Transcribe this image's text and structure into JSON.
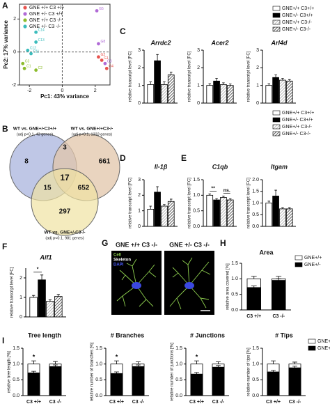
{
  "panel_labels": [
    "A",
    "B",
    "C",
    "D",
    "E",
    "F",
    "G",
    "H",
    "I"
  ],
  "venn": {
    "sets": [
      {
        "title": "WT vs. GNE+/-C3+/+",
        "subtitle": "(adj p<0.1, 43 genes)"
      },
      {
        "title": "WT vs. GNE+/+C3-/-",
        "subtitle": "(adj p<0.1, 1333 genes)"
      },
      {
        "title": "WT vs. GNE+/-C3-/-",
        "subtitle": "(adj p<0.1, 981 genes)"
      }
    ],
    "counts": [
      8,
      3,
      661,
      17,
      15,
      652,
      297
    ]
  },
  "micrographs": {
    "titles": [
      "GNE +/+ C3 -/-",
      "GNE +/- C3 -/-"
    ],
    "channels": [
      "Cell",
      "Skeleton",
      "DAPI"
    ]
  },
  "chart_data": [
    {
      "type": "scatter",
      "x_label": "Pc1: 43% variance",
      "y_label": "Pc2: 17% variance",
      "xlim": [
        -2.6,
        2.9
      ],
      "ylim": [
        -2,
        2.9
      ],
      "xticks": [
        -2,
        0,
        2
      ],
      "yticks": [
        -2,
        0,
        2
      ],
      "zero_lines": true,
      "series": [
        {
          "name": "GNE +/+ C3 +/+",
          "color": "#e8534e",
          "x": [
            2.4,
            2.2,
            2.7
          ],
          "y": [
            -0.5,
            -0.3,
            -1.0
          ],
          "point_labels": [
            "G1",
            "G2",
            "G4"
          ]
        },
        {
          "name": "GNE +/- C3 +/+",
          "color": "#b06ad6",
          "x": [
            2.1,
            2.2,
            2.6
          ],
          "y": [
            2.5,
            0.5,
            -0.7
          ],
          "point_labels": [
            "G5",
            "G8",
            "G3"
          ]
        },
        {
          "name": "GNE +/+ C3 -/-",
          "color": "#8cbc2c",
          "x": [
            -2.3,
            -1.6,
            -2.4
          ],
          "y": [
            -1.0,
            -1.1,
            -0.7
          ],
          "point_labels": [
            "C1",
            "C2",
            "C3"
          ]
        },
        {
          "name": "GNE +/- C3 -/-",
          "color": "#3bbcbc",
          "x": [
            -1.6,
            -1.6,
            -2.1,
            -1.9
          ],
          "y": [
            1.2,
            0.6,
            0.1,
            -0.1
          ],
          "point_labels": [
            "C14",
            "C13",
            "C12",
            "C11"
          ]
        }
      ]
    },
    {
      "type": "bar",
      "title": "Arrdc2",
      "y_label": "relative transcript level [FC]",
      "ylim": [
        0,
        3
      ],
      "yticks": [
        0,
        1,
        2,
        3
      ],
      "series": [
        {
          "name": "GNE+/+ C3+/+",
          "color": "#ffffff",
          "pattern": "solid",
          "values": [
            1.05
          ],
          "errors": [
            0.15
          ]
        },
        {
          "name": "GNE+/- C3+/+",
          "color": "#000000",
          "pattern": "solid",
          "values": [
            2.4
          ],
          "errors": [
            0.35
          ]
        },
        {
          "name": "GNE+/+ C3-/-",
          "color": "#9a9a9a",
          "pattern": "hatch",
          "values": [
            1.05
          ],
          "errors": [
            0.15
          ]
        },
        {
          "name": "GNE+/- C3-/-",
          "color": "#333333",
          "pattern": "hatch",
          "values": [
            1.6
          ],
          "errors": [
            0.15
          ]
        }
      ]
    },
    {
      "type": "bar",
      "title": "Acer2",
      "y_label": "relative transcript level [FC]",
      "ylim": [
        0,
        3
      ],
      "yticks": [
        0,
        1,
        2,
        3
      ],
      "series": [
        {
          "name": "GNE+/+ C3+/+",
          "color": "#ffffff",
          "pattern": "solid",
          "values": [
            1.0
          ],
          "errors": [
            0.1
          ]
        },
        {
          "name": "GNE+/- C3+/+",
          "color": "#000000",
          "pattern": "solid",
          "values": [
            1.25
          ],
          "errors": [
            0.15
          ]
        },
        {
          "name": "GNE+/+ C3-/-",
          "color": "#9a9a9a",
          "pattern": "hatch",
          "values": [
            1.05
          ],
          "errors": [
            0.1
          ]
        },
        {
          "name": "GNE+/- C3-/-",
          "color": "#333333",
          "pattern": "hatch",
          "values": [
            1.0
          ],
          "errors": [
            0.08
          ]
        }
      ]
    },
    {
      "type": "bar",
      "title": "Arl4d",
      "y_label": "relative transcript level [FC]",
      "ylim": [
        0,
        3
      ],
      "yticks": [
        0,
        1,
        2,
        3
      ],
      "series": [
        {
          "name": "GNE+/+ C3+/+",
          "color": "#ffffff",
          "pattern": "solid",
          "values": [
            1.0
          ],
          "errors": [
            0.1
          ]
        },
        {
          "name": "GNE+/- C3+/+",
          "color": "#000000",
          "pattern": "solid",
          "values": [
            1.45
          ],
          "errors": [
            0.15
          ]
        },
        {
          "name": "GNE+/+ C3-/-",
          "color": "#9a9a9a",
          "pattern": "hatch",
          "values": [
            1.3
          ],
          "errors": [
            0.1
          ]
        },
        {
          "name": "GNE+/- C3-/-",
          "color": "#333333",
          "pattern": "hatch",
          "values": [
            1.25
          ],
          "errors": [
            0.08
          ]
        }
      ]
    },
    {
      "type": "bar",
      "title": "Il-1β",
      "y_label": "relative transcript level [FC]",
      "ylim": [
        0,
        3
      ],
      "yticks": [
        0,
        1,
        2,
        3
      ],
      "series": [
        {
          "name": "GNE+/+ C3+/+",
          "color": "#ffffff",
          "pattern": "solid",
          "values": [
            1.1
          ],
          "errors": [
            0.2
          ]
        },
        {
          "name": "GNE+/- C3+/+",
          "color": "#000000",
          "pattern": "solid",
          "values": [
            2.2
          ],
          "errors": [
            0.35
          ]
        },
        {
          "name": "GNE+/+ C3-/-",
          "color": "#9a9a9a",
          "pattern": "hatch",
          "values": [
            1.3
          ],
          "errors": [
            0.1
          ]
        },
        {
          "name": "GNE+/- C3-/-",
          "color": "#333333",
          "pattern": "hatch",
          "values": [
            1.6
          ],
          "errors": [
            0.15
          ]
        }
      ]
    },
    {
      "type": "bar",
      "title": "C1qb",
      "y_label": "relative transcript level [FC]",
      "ylim": [
        0,
        1.5
      ],
      "yticks": [
        {
          "value": 0,
          "label": "0.0"
        },
        0.5,
        {
          "value": 1,
          "label": "1.0"
        },
        1.5
      ],
      "annotations": [
        {
          "text": "**",
          "bars": [
            0,
            1
          ]
        },
        {
          "text": "ns.",
          "bars": [
            2,
            3
          ]
        }
      ],
      "series": [
        {
          "name": "GNE+/+ C3+/+",
          "color": "#ffffff",
          "pattern": "solid",
          "values": [
            1.0
          ],
          "errors": [
            0.04
          ]
        },
        {
          "name": "GNE+/- C3+/+",
          "color": "#000000",
          "pattern": "solid",
          "values": [
            0.85
          ],
          "errors": [
            0.04
          ]
        },
        {
          "name": "GNE+/+ C3-/-",
          "color": "#9a9a9a",
          "pattern": "hatch",
          "values": [
            0.93
          ],
          "errors": [
            0.04
          ]
        },
        {
          "name": "GNE+/- C3-/-",
          "color": "#333333",
          "pattern": "hatch",
          "values": [
            0.85
          ],
          "errors": [
            0.04
          ]
        }
      ]
    },
    {
      "type": "bar",
      "title": "Itgam",
      "y_label": "relative transcript level [FC]",
      "ylim": [
        0,
        2
      ],
      "yticks": [
        {
          "value": 0,
          "label": "0.0"
        },
        0.5,
        {
          "value": 1,
          "label": "1.0"
        },
        1.5,
        {
          "value": 2,
          "label": "2.0"
        }
      ],
      "series": [
        {
          "name": "GNE+/+ C3+/+",
          "color": "#ffffff",
          "pattern": "solid",
          "values": [
            1.0
          ],
          "errors": [
            0.08
          ]
        },
        {
          "name": "GNE+/- C3+/+",
          "color": "#000000",
          "pattern": "solid",
          "values": [
            1.3
          ],
          "errors": [
            0.25
          ]
        },
        {
          "name": "GNE+/+ C3-/-",
          "color": "#9a9a9a",
          "pattern": "hatch",
          "values": [
            0.75
          ],
          "errors": [
            0.05
          ]
        },
        {
          "name": "GNE+/- C3-/-",
          "color": "#333333",
          "pattern": "hatch",
          "values": [
            0.75
          ],
          "errors": [
            0.05
          ]
        }
      ]
    },
    {
      "type": "bar",
      "title": "Aif1",
      "y_label": "relative transcript level [FC]",
      "ylim": [
        0,
        2.5
      ],
      "yticks": [
        0,
        1,
        2
      ],
      "annotations": [
        {
          "text": "*",
          "bars": [
            0,
            1
          ]
        }
      ],
      "series": [
        {
          "name": "GNE+/+ C3+/+",
          "color": "#ffffff",
          "pattern": "solid",
          "values": [
            1.0
          ],
          "errors": [
            0.1
          ]
        },
        {
          "name": "GNE+/- C3+/+",
          "color": "#000000",
          "pattern": "solid",
          "values": [
            1.9
          ],
          "errors": [
            0.25
          ]
        },
        {
          "name": "GNE+/+ C3-/-",
          "color": "#9a9a9a",
          "pattern": "hatch",
          "values": [
            0.8
          ],
          "errors": [
            0.08
          ]
        },
        {
          "name": "GNE+/- C3-/-",
          "color": "#333333",
          "pattern": "hatch",
          "values": [
            1.05
          ],
          "errors": [
            0.1
          ]
        }
      ]
    },
    {
      "type": "bar",
      "bar_mode": "overlay",
      "title": "Area",
      "y_label": "relative area covered [%]",
      "ylim": [
        0,
        1.5
      ],
      "yticks": [
        {
          "value": 0,
          "label": "0.0"
        },
        0.5,
        {
          "value": 1,
          "label": "1.0"
        },
        1.5
      ],
      "categories": [
        "C3 +/+",
        "C3 -/-"
      ],
      "series": [
        {
          "name": "GNE+/+",
          "color": "#ffffff",
          "pattern": "solid",
          "values": [
            1.0,
            1.0
          ],
          "errors": [
            0.08,
            0.08
          ]
        },
        {
          "name": "GNE+/-",
          "color": "#000000",
          "pattern": "solid",
          "values": [
            0.72,
            0.95
          ],
          "errors": [
            0.05,
            0.05
          ]
        }
      ]
    },
    {
      "type": "bar",
      "bar_mode": "overlay",
      "title": "Tree length",
      "y_label": "relative tree length [%]",
      "ylim": [
        0,
        1.5
      ],
      "yticks": [
        {
          "value": 0,
          "label": "0.0"
        },
        0.5,
        {
          "value": 1,
          "label": "1.0"
        },
        1.5
      ],
      "categories": [
        "C3 +/+",
        "C3 -/-"
      ],
      "annotations": [
        {
          "text": "*",
          "category": 0
        }
      ],
      "series": [
        {
          "name": "GNE+/+",
          "color": "#ffffff",
          "pattern": "solid",
          "values": [
            1.0,
            1.0
          ],
          "errors": [
            0.1,
            0.08
          ]
        },
        {
          "name": "GNE+/-",
          "color": "#000000",
          "pattern": "solid",
          "values": [
            0.72,
            0.92
          ],
          "errors": [
            0.05,
            0.05
          ]
        }
      ]
    },
    {
      "type": "bar",
      "bar_mode": "overlay",
      "title": "# Branches",
      "y_label": "relative number of branches [%]",
      "ylim": [
        0,
        1.5
      ],
      "yticks": [
        {
          "value": 0,
          "label": "0.0"
        },
        0.5,
        {
          "value": 1,
          "label": "1.0"
        },
        1.5
      ],
      "categories": [
        "C3 +/+",
        "C3 -/-"
      ],
      "annotations": [
        {
          "text": "*",
          "category": 0
        }
      ],
      "series": [
        {
          "name": "GNE+/+",
          "color": "#ffffff",
          "pattern": "solid",
          "values": [
            1.0,
            1.0
          ],
          "errors": [
            0.1,
            0.07
          ]
        },
        {
          "name": "GNE+/-",
          "color": "#000000",
          "pattern": "solid",
          "values": [
            0.7,
            0.92
          ],
          "errors": [
            0.05,
            0.05
          ]
        }
      ]
    },
    {
      "type": "bar",
      "bar_mode": "overlay",
      "title": "# Junctions",
      "y_label": "relative number of junctions [%]",
      "ylim": [
        0,
        1.5
      ],
      "yticks": [
        {
          "value": 0,
          "label": "0.0"
        },
        0.5,
        {
          "value": 1,
          "label": "1.0"
        },
        1.5
      ],
      "categories": [
        "C3 +/+",
        "C3 -/-"
      ],
      "annotations": [
        {
          "text": "*",
          "category": 0
        }
      ],
      "series": [
        {
          "name": "GNE+/+",
          "color": "#ffffff",
          "pattern": "solid",
          "values": [
            1.0,
            1.0
          ],
          "errors": [
            0.1,
            0.07
          ]
        },
        {
          "name": "GNE+/-",
          "color": "#000000",
          "pattern": "solid",
          "values": [
            0.68,
            0.9
          ],
          "errors": [
            0.05,
            0.05
          ]
        }
      ]
    },
    {
      "type": "bar",
      "bar_mode": "overlay",
      "title": "# Tips",
      "y_label": "relative number of tips [%]",
      "ylim": [
        0,
        1.5
      ],
      "yticks": [
        {
          "value": 0,
          "label": "0.0"
        },
        0.5,
        {
          "value": 1,
          "label": "1.0"
        },
        1.5
      ],
      "categories": [
        "C3 +/+",
        "C3 -/-"
      ],
      "series": [
        {
          "name": "GNE+/+",
          "color": "#ffffff",
          "pattern": "solid",
          "values": [
            1.0,
            1.0
          ],
          "errors": [
            0.1,
            0.06
          ]
        },
        {
          "name": "GNE+/-",
          "color": "#000000",
          "pattern": "solid",
          "values": [
            0.75,
            0.88
          ],
          "errors": [
            0.05,
            0.05
          ]
        }
      ]
    }
  ]
}
